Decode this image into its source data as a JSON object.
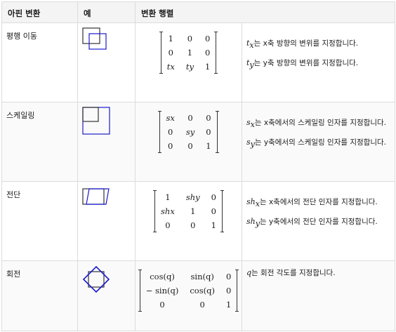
{
  "header": {
    "col1": "아핀 변환",
    "col2": "예",
    "col3": "변환 행렬"
  },
  "rows": [
    {
      "name": "평행 이동",
      "matrix": [
        [
          "1",
          "0",
          "0"
        ],
        [
          "0",
          "1",
          "0"
        ],
        [
          "tx",
          "ty",
          "1"
        ]
      ],
      "desc": [
        {
          "sym": "t",
          "sub": "x",
          "text": "는 x축 방향의 변위를 지정합니다."
        },
        {
          "sym": "t",
          "sub": "y",
          "text": "는 y축 방향의 변위를 지정합니다."
        }
      ]
    },
    {
      "name": "스케일링",
      "matrix": [
        [
          "sx",
          "0",
          "0"
        ],
        [
          "0",
          "sy",
          "0"
        ],
        [
          "0",
          "0",
          "1"
        ]
      ],
      "desc": [
        {
          "sym": "s",
          "sub": "x",
          "text": "는 x축에서의 스케일링 인자를 지정합니다."
        },
        {
          "sym": "s",
          "sub": "y",
          "text": "는 y축에서의 스케일링 인자를 지정합니다."
        }
      ]
    },
    {
      "name": "전단",
      "matrix": [
        [
          "1",
          "shy",
          "0"
        ],
        [
          "shx",
          "1",
          "0"
        ],
        [
          "0",
          "0",
          "1"
        ]
      ],
      "desc": [
        {
          "sym": "sh",
          "sub": "x",
          "text": "는 x축에서의 전단 인자를 지정합니다."
        },
        {
          "sym": "sh",
          "sub": "y",
          "text": "는 y축에서의 전단 인자를 지정합니다."
        }
      ]
    },
    {
      "name": "회전",
      "matrix": [
        [
          "cos(q)",
          "sin(q)",
          "0"
        ],
        [
          "− sin(q)",
          "cos(q)",
          "0"
        ],
        [
          "0",
          "0",
          "1"
        ]
      ],
      "desc": [
        {
          "sym": "q",
          "sub": "",
          "text": "는 회전 각도를 지정합니다."
        }
      ]
    }
  ],
  "colors": {
    "shape": "#1a1acc",
    "shape_ref": "#333333",
    "border": "#dcdcdc"
  },
  "icons": [
    "translate-example-icon",
    "scale-example-icon",
    "shear-example-icon",
    "rotate-example-icon"
  ]
}
